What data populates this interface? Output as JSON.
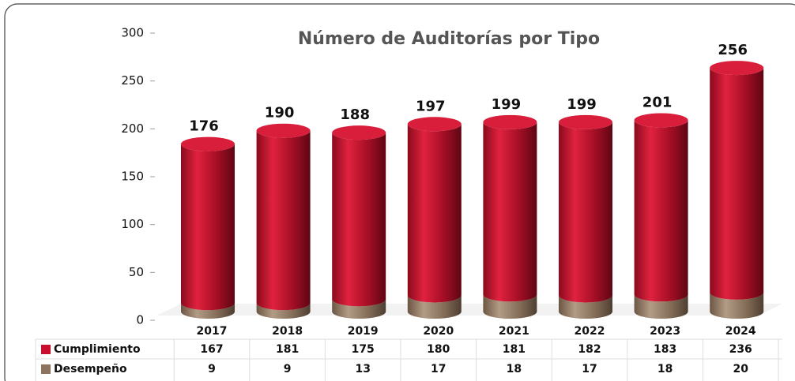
{
  "chart_data": {
    "type": "stacked-cylinder",
    "title": "Número de Auditorías por Tipo",
    "categories": [
      "2017",
      "2018",
      "2019",
      "2020",
      "2021",
      "2022",
      "2023",
      "2024"
    ],
    "series": [
      {
        "name": "Cumplimiento",
        "color": "#c8102e",
        "values": [
          167,
          181,
          175,
          180,
          181,
          182,
          183,
          236
        ]
      },
      {
        "name": "Desempeño",
        "color": "#8c7560",
        "values": [
          9,
          9,
          13,
          17,
          18,
          17,
          18,
          20
        ]
      }
    ],
    "totals": [
      176,
      190,
      188,
      197,
      199,
      199,
      201,
      256
    ],
    "ylim": [
      0,
      300
    ],
    "yticks": [
      0,
      50,
      100,
      150,
      200,
      250,
      300
    ]
  }
}
